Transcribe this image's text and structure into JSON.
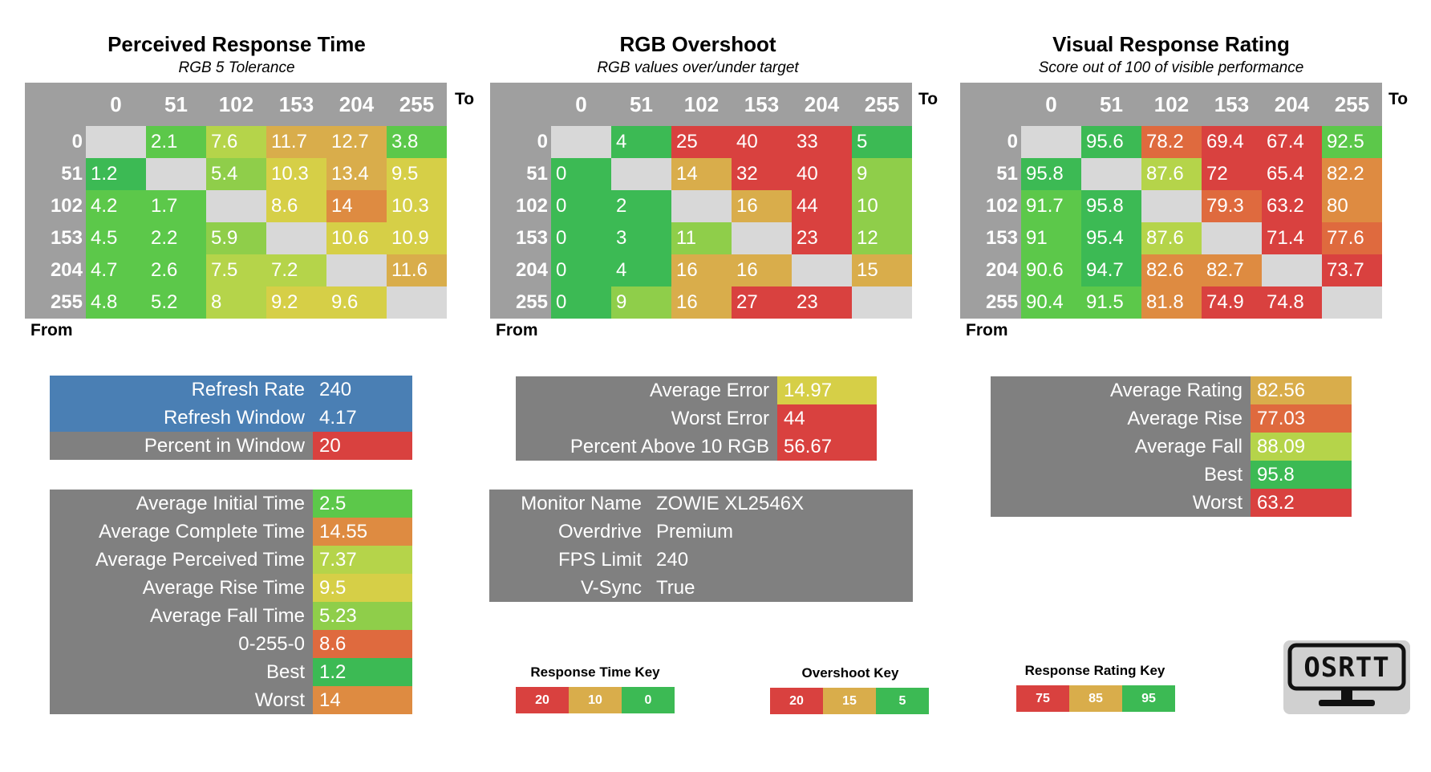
{
  "colors": {
    "green_dark": "#3cba54",
    "green": "#5cc84a",
    "green_light": "#8fce4a",
    "yellow_green": "#b5d44a",
    "yellow": "#d6cf47",
    "gold": "#d9ad4b",
    "orange": "#de8b41",
    "orange_red": "#df6a3e",
    "red": "#d9413f",
    "blue": "#4a7fb4",
    "grey": "#808080",
    "empty": "#d8d8d8"
  },
  "axis_labels": {
    "to": "To",
    "from": "From"
  },
  "panels": [
    {
      "title": "Perceived Response Time",
      "subtitle": "RGB 5 Tolerance",
      "cols": [
        "0",
        "51",
        "102",
        "153",
        "204",
        "255"
      ],
      "rows": [
        {
          "label": "0",
          "cells": [
            {
              "v": "",
              "c": "empty"
            },
            {
              "v": "2.1",
              "c": "green"
            },
            {
              "v": "7.6",
              "c": "yellow_green"
            },
            {
              "v": "11.7",
              "c": "gold"
            },
            {
              "v": "12.7",
              "c": "gold"
            },
            {
              "v": "3.8",
              "c": "green"
            }
          ]
        },
        {
          "label": "51",
          "cells": [
            {
              "v": "1.2",
              "c": "green_dark"
            },
            {
              "v": "",
              "c": "empty"
            },
            {
              "v": "5.4",
              "c": "green_light"
            },
            {
              "v": "10.3",
              "c": "yellow"
            },
            {
              "v": "13.4",
              "c": "gold"
            },
            {
              "v": "9.5",
              "c": "yellow"
            }
          ]
        },
        {
          "label": "102",
          "cells": [
            {
              "v": "4.2",
              "c": "green"
            },
            {
              "v": "1.7",
              "c": "green"
            },
            {
              "v": "",
              "c": "empty"
            },
            {
              "v": "8.6",
              "c": "yellow"
            },
            {
              "v": "14",
              "c": "orange"
            },
            {
              "v": "10.3",
              "c": "yellow"
            }
          ]
        },
        {
          "label": "153",
          "cells": [
            {
              "v": "4.5",
              "c": "green"
            },
            {
              "v": "2.2",
              "c": "green"
            },
            {
              "v": "5.9",
              "c": "green_light"
            },
            {
              "v": "",
              "c": "empty"
            },
            {
              "v": "10.6",
              "c": "yellow"
            },
            {
              "v": "10.9",
              "c": "yellow"
            }
          ]
        },
        {
          "label": "204",
          "cells": [
            {
              "v": "4.7",
              "c": "green"
            },
            {
              "v": "2.6",
              "c": "green"
            },
            {
              "v": "7.5",
              "c": "yellow_green"
            },
            {
              "v": "7.2",
              "c": "yellow_green"
            },
            {
              "v": "",
              "c": "empty"
            },
            {
              "v": "11.6",
              "c": "gold"
            }
          ]
        },
        {
          "label": "255",
          "cells": [
            {
              "v": "4.8",
              "c": "green"
            },
            {
              "v": "5.2",
              "c": "green"
            },
            {
              "v": "8",
              "c": "yellow_green"
            },
            {
              "v": "9.2",
              "c": "yellow"
            },
            {
              "v": "9.6",
              "c": "yellow"
            },
            {
              "v": "",
              "c": "empty"
            }
          ]
        }
      ]
    },
    {
      "title": "RGB Overshoot",
      "subtitle": "RGB values over/under target",
      "cols": [
        "0",
        "51",
        "102",
        "153",
        "204",
        "255"
      ],
      "rows": [
        {
          "label": "0",
          "cells": [
            {
              "v": "",
              "c": "empty"
            },
            {
              "v": "4",
              "c": "green_dark"
            },
            {
              "v": "25",
              "c": "red"
            },
            {
              "v": "40",
              "c": "red"
            },
            {
              "v": "33",
              "c": "red"
            },
            {
              "v": "5",
              "c": "green_dark"
            }
          ]
        },
        {
          "label": "51",
          "cells": [
            {
              "v": "0",
              "c": "green_dark"
            },
            {
              "v": "",
              "c": "empty"
            },
            {
              "v": "14",
              "c": "gold"
            },
            {
              "v": "32",
              "c": "red"
            },
            {
              "v": "40",
              "c": "red"
            },
            {
              "v": "9",
              "c": "green_light"
            }
          ]
        },
        {
          "label": "102",
          "cells": [
            {
              "v": "0",
              "c": "green_dark"
            },
            {
              "v": "2",
              "c": "green_dark"
            },
            {
              "v": "",
              "c": "empty"
            },
            {
              "v": "16",
              "c": "gold"
            },
            {
              "v": "44",
              "c": "red"
            },
            {
              "v": "10",
              "c": "green_light"
            }
          ]
        },
        {
          "label": "153",
          "cells": [
            {
              "v": "0",
              "c": "green_dark"
            },
            {
              "v": "3",
              "c": "green_dark"
            },
            {
              "v": "11",
              "c": "green_light"
            },
            {
              "v": "",
              "c": "empty"
            },
            {
              "v": "23",
              "c": "red"
            },
            {
              "v": "12",
              "c": "green_light"
            }
          ]
        },
        {
          "label": "204",
          "cells": [
            {
              "v": "0",
              "c": "green_dark"
            },
            {
              "v": "4",
              "c": "green_dark"
            },
            {
              "v": "16",
              "c": "gold"
            },
            {
              "v": "16",
              "c": "gold"
            },
            {
              "v": "",
              "c": "empty"
            },
            {
              "v": "15",
              "c": "gold"
            }
          ]
        },
        {
          "label": "255",
          "cells": [
            {
              "v": "0",
              "c": "green_dark"
            },
            {
              "v": "9",
              "c": "green_light"
            },
            {
              "v": "16",
              "c": "gold"
            },
            {
              "v": "27",
              "c": "red"
            },
            {
              "v": "23",
              "c": "red"
            },
            {
              "v": "",
              "c": "empty"
            }
          ]
        }
      ]
    },
    {
      "title": "Visual Response Rating",
      "subtitle": "Score out of 100 of visible performance",
      "cols": [
        "0",
        "51",
        "102",
        "153",
        "204",
        "255"
      ],
      "rows": [
        {
          "label": "0",
          "cells": [
            {
              "v": "",
              "c": "empty"
            },
            {
              "v": "95.6",
              "c": "green_dark"
            },
            {
              "v": "78.2",
              "c": "orange_red"
            },
            {
              "v": "69.4",
              "c": "red"
            },
            {
              "v": "67.4",
              "c": "red"
            },
            {
              "v": "92.5",
              "c": "green"
            }
          ]
        },
        {
          "label": "51",
          "cells": [
            {
              "v": "95.8",
              "c": "green_dark"
            },
            {
              "v": "",
              "c": "empty"
            },
            {
              "v": "87.6",
              "c": "yellow_green"
            },
            {
              "v": "72",
              "c": "red"
            },
            {
              "v": "65.4",
              "c": "red"
            },
            {
              "v": "82.2",
              "c": "orange"
            }
          ]
        },
        {
          "label": "102",
          "cells": [
            {
              "v": "91.7",
              "c": "green"
            },
            {
              "v": "95.8",
              "c": "green_dark"
            },
            {
              "v": "",
              "c": "empty"
            },
            {
              "v": "79.3",
              "c": "orange_red"
            },
            {
              "v": "63.2",
              "c": "red"
            },
            {
              "v": "80",
              "c": "orange"
            }
          ]
        },
        {
          "label": "153",
          "cells": [
            {
              "v": "91",
              "c": "green"
            },
            {
              "v": "95.4",
              "c": "green_dark"
            },
            {
              "v": "87.6",
              "c": "yellow_green"
            },
            {
              "v": "",
              "c": "empty"
            },
            {
              "v": "71.4",
              "c": "red"
            },
            {
              "v": "77.6",
              "c": "orange_red"
            }
          ]
        },
        {
          "label": "204",
          "cells": [
            {
              "v": "90.6",
              "c": "green"
            },
            {
              "v": "94.7",
              "c": "green_dark"
            },
            {
              "v": "82.6",
              "c": "orange"
            },
            {
              "v": "82.7",
              "c": "orange"
            },
            {
              "v": "",
              "c": "empty"
            },
            {
              "v": "73.7",
              "c": "red"
            }
          ]
        },
        {
          "label": "255",
          "cells": [
            {
              "v": "90.4",
              "c": "green"
            },
            {
              "v": "91.5",
              "c": "green"
            },
            {
              "v": "81.8",
              "c": "orange"
            },
            {
              "v": "74.9",
              "c": "red"
            },
            {
              "v": "74.8",
              "c": "red"
            },
            {
              "v": "",
              "c": "empty"
            }
          ]
        }
      ]
    }
  ],
  "refresh_box": [
    {
      "label": "Refresh Rate",
      "value": "240",
      "lc": "blue",
      "vc": "blue"
    },
    {
      "label": "Refresh Window",
      "value": "4.17",
      "lc": "blue",
      "vc": "blue"
    },
    {
      "label": "Percent in Window",
      "value": "20",
      "lc": "grey",
      "vc": "red"
    }
  ],
  "time_box": [
    {
      "label": "Average Initial Time",
      "value": "2.5",
      "vc": "green"
    },
    {
      "label": "Average Complete Time",
      "value": "14.55",
      "vc": "orange"
    },
    {
      "label": "Average Perceived Time",
      "value": "7.37",
      "vc": "yellow_green"
    },
    {
      "label": "Average Rise Time",
      "value": "9.5",
      "vc": "yellow"
    },
    {
      "label": "Average Fall Time",
      "value": "5.23",
      "vc": "green_light"
    },
    {
      "label": "0-255-0",
      "value": "8.6",
      "vc": "orange_red"
    },
    {
      "label": "Best",
      "value": "1.2",
      "vc": "green_dark"
    },
    {
      "label": "Worst",
      "value": "14",
      "vc": "orange"
    }
  ],
  "error_box": [
    {
      "label": "Average Error",
      "value": "14.97",
      "vc": "yellow"
    },
    {
      "label": "Worst Error",
      "value": "44",
      "vc": "red"
    },
    {
      "label": "Percent Above 10 RGB",
      "value": "56.67",
      "vc": "red"
    }
  ],
  "monitor_box": [
    {
      "label": "Monitor Name",
      "value": "ZOWIE XL2546X"
    },
    {
      "label": "Overdrive",
      "value": "Premium"
    },
    {
      "label": "FPS Limit",
      "value": "240"
    },
    {
      "label": "V-Sync",
      "value": "True"
    }
  ],
  "rating_box": [
    {
      "label": "Average Rating",
      "value": "82.56",
      "vc": "gold"
    },
    {
      "label": "Average Rise",
      "value": "77.03",
      "vc": "orange_red"
    },
    {
      "label": "Average Fall",
      "value": "88.09",
      "vc": "yellow_green"
    },
    {
      "label": "Best",
      "value": "95.8",
      "vc": "green_dark"
    },
    {
      "label": "Worst",
      "value": "63.2",
      "vc": "red"
    }
  ],
  "keys": [
    {
      "title": "Response Time Key",
      "items": [
        {
          "v": "20",
          "c": "red"
        },
        {
          "v": "10",
          "c": "gold"
        },
        {
          "v": "0",
          "c": "green_dark"
        }
      ]
    },
    {
      "title": "Overshoot Key",
      "items": [
        {
          "v": "20",
          "c": "red"
        },
        {
          "v": "15",
          "c": "gold"
        },
        {
          "v": "5",
          "c": "green_dark"
        }
      ]
    },
    {
      "title": "Response Rating Key",
      "items": [
        {
          "v": "75",
          "c": "red"
        },
        {
          "v": "85",
          "c": "gold"
        },
        {
          "v": "95",
          "c": "green_dark"
        }
      ]
    }
  ],
  "logo": {
    "text": "OSRTT",
    "icon": "monitor-icon"
  }
}
